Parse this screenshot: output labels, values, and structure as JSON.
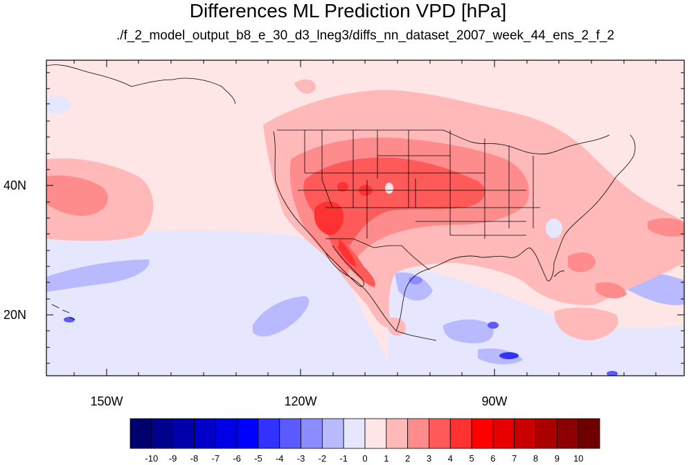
{
  "title": "Differences ML Prediction VPD [hPa]",
  "subtitle": "./f_2_model_output_b8_e_30_d3_lneg3/diffs_nn_dataset_2007_week_44_ens_2_f_2",
  "map": {
    "lat_labels": [
      "40N",
      "20N"
    ],
    "lon_labels": [
      "150W",
      "120W",
      "90W"
    ]
  },
  "colorbar": {
    "labels": [
      "-10",
      "-9",
      "-8",
      "-7",
      "-6",
      "-5",
      "-4",
      "-3",
      "-2",
      "-1",
      "0",
      "1",
      "2",
      "3",
      "4",
      "5",
      "6",
      "7",
      "8",
      "9",
      "10"
    ],
    "colors": [
      "#00006e",
      "#00008c",
      "#0000aa",
      "#0000c8",
      "#0000e6",
      "#0000ff",
      "#3232ff",
      "#5a5aff",
      "#8c8cff",
      "#b9b9ff",
      "#e6e6ff",
      "#ffe6e6",
      "#ffb9b9",
      "#ff8c8c",
      "#ff5a5a",
      "#ff3232",
      "#ff0000",
      "#e60000",
      "#c80000",
      "#aa0000",
      "#8c0000",
      "#6e0000"
    ]
  }
}
